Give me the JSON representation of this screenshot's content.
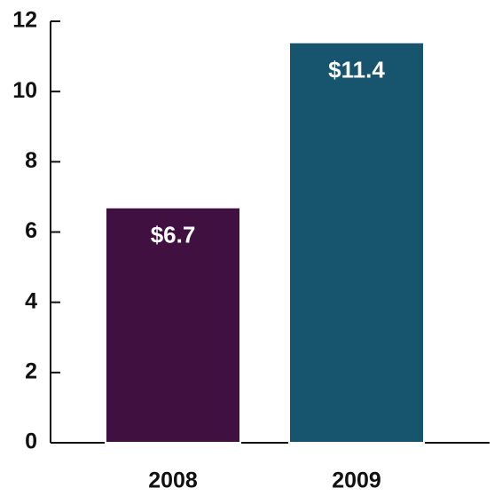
{
  "chart_data": {
    "type": "bar",
    "categories": [
      "2008",
      "2009"
    ],
    "values": [
      6.7,
      11.4
    ],
    "value_labels": [
      "$6.7",
      "$11.4"
    ],
    "colors": [
      "#3f1040",
      "#17556e"
    ],
    "ylim": [
      0,
      12
    ],
    "yticks": [
      0,
      2,
      4,
      6,
      8,
      10,
      12
    ],
    "grid": false
  }
}
